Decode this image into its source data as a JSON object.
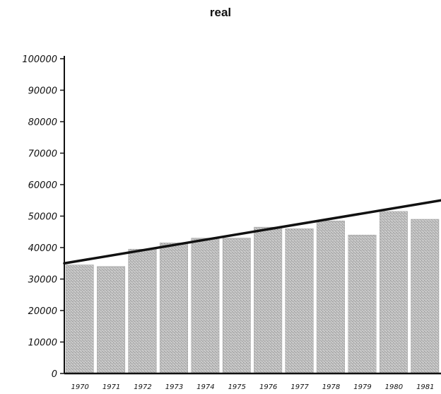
{
  "chart_data": {
    "type": "bar",
    "title": "real",
    "xlabel": "",
    "ylabel": "",
    "categories": [
      "1970",
      "1971",
      "1972",
      "1973",
      "1974",
      "1975",
      "1976",
      "1977",
      "1978",
      "1979",
      "1980",
      "1981"
    ],
    "values": [
      34500,
      34000,
      39500,
      41500,
      43000,
      43000,
      46500,
      46000,
      48500,
      44000,
      51500,
      49000
    ],
    "trend_line": {
      "start": 35000,
      "end": 55000
    },
    "ylim": [
      0,
      100000
    ],
    "yticks": [
      "100000",
      "90000",
      "80000",
      "70000",
      "60000",
      "50000",
      "40000",
      "30000",
      "20000",
      "10000",
      "0"
    ],
    "ytick_values": [
      100000,
      90000,
      80000,
      70000,
      60000,
      50000,
      40000,
      30000,
      20000,
      10000,
      0
    ],
    "grid": false,
    "legend": "none",
    "colors": {
      "bar": "#b5b5b5",
      "trend": "#111111",
      "axis": "#111111"
    }
  }
}
